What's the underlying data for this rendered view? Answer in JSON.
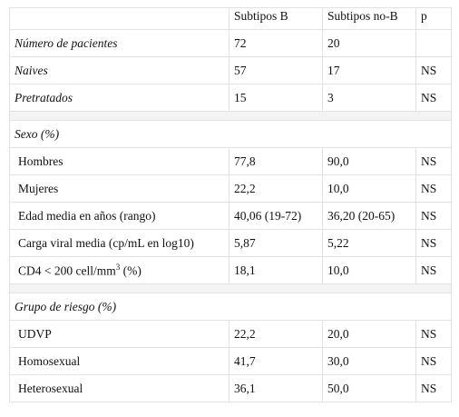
{
  "table": {
    "header": [
      "Subtipos B",
      "Subtipos no-B",
      "p"
    ],
    "rows": [
      [
        "Número de pacientes",
        "72",
        "20"
      ],
      [
        "Naives",
        "57",
        "17",
        "NS"
      ],
      [
        "Pretratados",
        "15",
        "3",
        "NS"
      ],
      [
        "Sexo (%)"
      ],
      [
        "Hombres",
        "77,8",
        "90,0",
        "NS"
      ],
      [
        "Mujeres",
        "22,2",
        "10,0",
        "NS"
      ],
      [
        "Edad media en años (rango)",
        "40,06 (19-72)",
        "36,20 (20-65)",
        "NS"
      ],
      [
        "Carga viral media (cp/mL en log10)",
        "5,87",
        "5,22",
        "NS"
      ],
      [
        {
          "text": "CD4 < 200 cell/mm",
          "sup": "3",
          "suffix": " (%)"
        },
        "18,1",
        "10,0",
        "NS"
      ],
      [
        "Grupo de riesgo (%)"
      ],
      [
        "UDVP",
        "22,2",
        "20,0",
        "NS"
      ],
      [
        "Homosexual",
        "41,7",
        "30,0",
        "NS"
      ],
      [
        "Heterosexual",
        "36,1",
        "50,0",
        "NS"
      ]
    ]
  }
}
